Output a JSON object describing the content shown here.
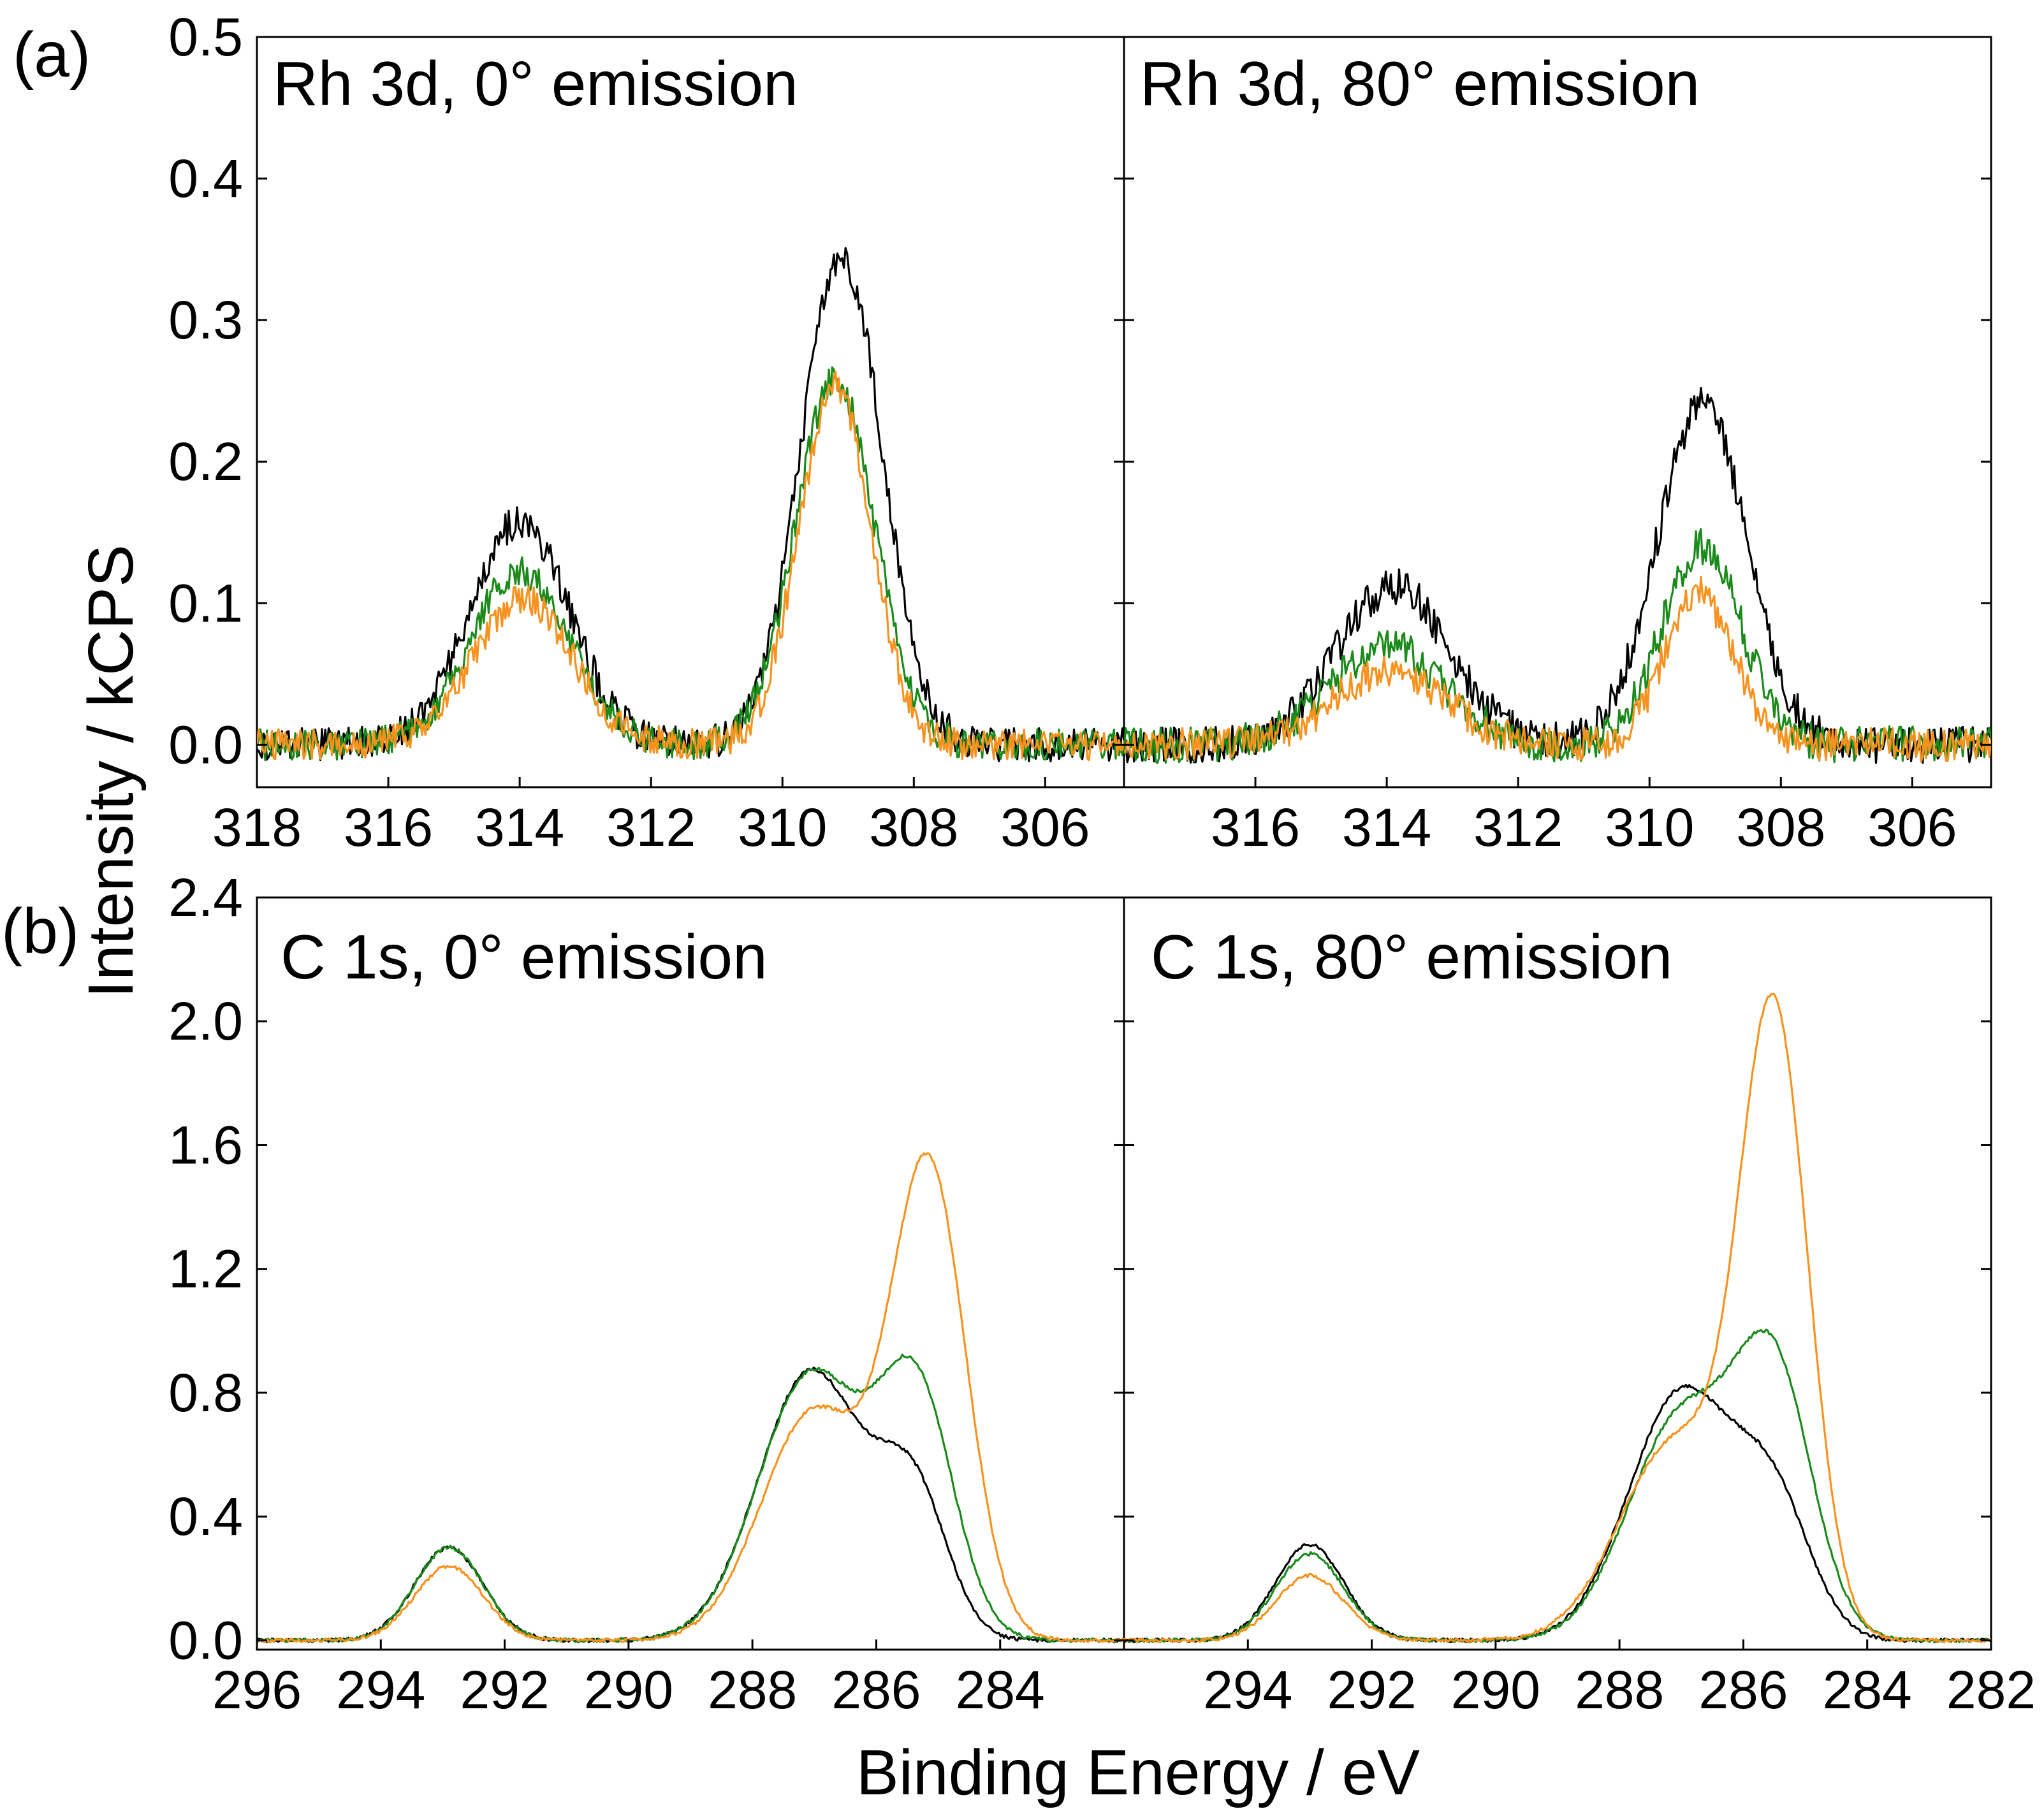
{
  "figure": {
    "label_a": "(a)",
    "label_b": "(b)",
    "y_axis_title": "Intensity / kCPS",
    "x_axis_title": "Binding Energy / eV"
  },
  "colors": {
    "black": "#000000",
    "green": "#1a8a1a",
    "orange": "#f7921e"
  },
  "chart_data": [
    {
      "id": "a-left",
      "type": "line",
      "title": "Rh 3d, 0° emission",
      "xlim": [
        318,
        304.8
      ],
      "ylim": [
        -0.03,
        0.5
      ],
      "yticks": [
        0.0,
        0.1,
        0.2,
        0.3,
        0.4,
        0.5
      ],
      "ytick_labels": [
        "0.0",
        "0.1",
        "0.2",
        "0.3",
        "0.4",
        "0.5"
      ],
      "xticks": [
        318,
        316,
        314,
        312,
        310,
        308,
        306
      ],
      "xtick_labels": [
        "318",
        "316",
        "314",
        "312",
        "310",
        "308",
        "306"
      ],
      "series": [
        {
          "name": "black",
          "color": "#000000",
          "peaks": [
            {
              "x": 314.0,
              "h": 0.158,
              "w": 0.75
            },
            {
              "x": 309.1,
              "h": 0.345,
              "w": 0.62
            }
          ],
          "noise": 0.012,
          "peak_x": [
            314.05,
            309.1
          ],
          "peak_y": [
            0.18,
            0.365
          ]
        },
        {
          "name": "green",
          "color": "#1a8a1a",
          "peaks": [
            {
              "x": 314.0,
              "h": 0.123,
              "w": 0.75
            },
            {
              "x": 309.2,
              "h": 0.258,
              "w": 0.6
            }
          ],
          "noise": 0.011,
          "peak_x": [
            314.05,
            309.25
          ],
          "peak_y": [
            0.14,
            0.29
          ]
        },
        {
          "name": "orange",
          "color": "#f7921e",
          "peaks": [
            {
              "x": 313.95,
              "h": 0.103,
              "w": 0.75
            },
            {
              "x": 309.2,
              "h": 0.253,
              "w": 0.55
            }
          ],
          "noise": 0.011,
          "peak_x": [
            313.95,
            309.15
          ],
          "peak_y": [
            0.12,
            0.275
          ]
        }
      ]
    },
    {
      "id": "a-right",
      "type": "line",
      "title": "Rh 3d, 80° emission",
      "xlim": [
        318,
        304.8
      ],
      "ylim": [
        -0.03,
        0.5
      ],
      "yticks": [
        0.0,
        0.1,
        0.2,
        0.3,
        0.4,
        0.5
      ],
      "ytick_labels": [
        "",
        "",
        "",
        "",
        "",
        ""
      ],
      "xticks": [
        316,
        314,
        312,
        310,
        308,
        306
      ],
      "xtick_labels": [
        "316",
        "314",
        "312",
        "310",
        "308",
        "306"
      ],
      "series": [
        {
          "name": "black",
          "color": "#000000",
          "peaks": [
            {
              "x": 313.9,
              "h": 0.112,
              "w": 0.85
            },
            {
              "x": 309.2,
              "h": 0.24,
              "w": 0.68
            }
          ],
          "noise": 0.013,
          "peak_x": [
            313.9,
            309.2
          ],
          "peak_y": [
            0.133,
            0.262
          ]
        },
        {
          "name": "green",
          "color": "#1a8a1a",
          "peaks": [
            {
              "x": 314.0,
              "h": 0.07,
              "w": 0.85
            },
            {
              "x": 309.2,
              "h": 0.14,
              "w": 0.6
            }
          ],
          "noise": 0.013,
          "peak_x": [
            314.0,
            309.2
          ],
          "peak_y": [
            0.088,
            0.165
          ]
        },
        {
          "name": "orange",
          "color": "#f7921e",
          "peaks": [
            {
              "x": 313.95,
              "h": 0.052,
              "w": 0.85
            },
            {
              "x": 309.25,
              "h": 0.107,
              "w": 0.52
            }
          ],
          "noise": 0.012,
          "peak_x": [
            313.95,
            309.25
          ],
          "peak_y": [
            0.068,
            0.125
          ]
        }
      ]
    },
    {
      "id": "b-left",
      "type": "line",
      "title": "C 1s, 0° emission",
      "xlim": [
        296,
        282
      ],
      "ylim": [
        -0.03,
        2.4
      ],
      "yticks": [
        0.0,
        0.4,
        0.8,
        1.2,
        1.6,
        2.0,
        2.4
      ],
      "ytick_labels": [
        "0.0",
        "0.4",
        "0.8",
        "1.2",
        "1.6",
        "2.0",
        "2.4"
      ],
      "xticks": [
        296,
        294,
        292,
        290,
        288,
        286,
        284
      ],
      "xtick_labels": [
        "296",
        "294",
        "292",
        "290",
        "288",
        "286",
        "284"
      ],
      "series": [
        {
          "name": "black",
          "color": "#000000",
          "peaks": [
            {
              "x": 292.9,
              "h": 0.3,
              "w": 0.55
            },
            {
              "x": 287.05,
              "h": 0.87,
              "w": 0.85
            },
            {
              "x": 285.4,
              "h": 0.45,
              "w": 0.55
            }
          ],
          "noise": 0.006,
          "peak_x": [
            292.9,
            287.0,
            285.4
          ],
          "peak_y": [
            0.31,
            0.92,
            0.65
          ]
        },
        {
          "name": "green",
          "color": "#1a8a1a",
          "peaks": [
            {
              "x": 292.9,
              "h": 0.3,
              "w": 0.55
            },
            {
              "x": 287.05,
              "h": 0.86,
              "w": 0.85
            },
            {
              "x": 285.35,
              "h": 0.78,
              "w": 0.6
            }
          ],
          "noise": 0.006,
          "peak_x": [
            292.9,
            287.0,
            285.35
          ],
          "peak_y": [
            0.31,
            0.92,
            0.99
          ]
        },
        {
          "name": "orange",
          "color": "#f7921e",
          "peaks": [
            {
              "x": 292.9,
              "h": 0.24,
              "w": 0.55
            },
            {
              "x": 287.0,
              "h": 0.74,
              "w": 0.85
            },
            {
              "x": 285.15,
              "h": 1.5,
              "w": 0.6
            }
          ],
          "noise": 0.006,
          "peak_x": [
            292.9,
            287.0,
            285.15
          ],
          "peak_y": [
            0.25,
            0.78,
            1.64
          ]
        }
      ]
    },
    {
      "id": "b-right",
      "type": "line",
      "title": "C 1s, 80° emission",
      "xlim": [
        296,
        282
      ],
      "ylim": [
        -0.03,
        2.4
      ],
      "yticks": [
        0.0,
        0.4,
        0.8,
        1.2,
        1.6,
        2.0,
        2.4
      ],
      "ytick_labels": [
        "",
        "",
        "",
        "",
        "",
        "",
        ""
      ],
      "xticks": [
        294,
        292,
        290,
        288,
        286,
        284,
        282
      ],
      "xtick_labels": [
        "294",
        "292",
        "290",
        "288",
        "286",
        "284",
        "282"
      ],
      "series": [
        {
          "name": "black",
          "color": "#000000",
          "peaks": [
            {
              "x": 293.0,
              "h": 0.31,
              "w": 0.55
            },
            {
              "x": 287.0,
              "h": 0.8,
              "w": 0.85
            },
            {
              "x": 285.5,
              "h": 0.4,
              "w": 0.6
            }
          ],
          "noise": 0.006,
          "peak_x": [
            293.0,
            287.0,
            285.5
          ],
          "peak_y": [
            0.33,
            0.87,
            0.52
          ]
        },
        {
          "name": "green",
          "color": "#1a8a1a",
          "peaks": [
            {
              "x": 293.0,
              "h": 0.28,
              "w": 0.55
            },
            {
              "x": 287.0,
              "h": 0.72,
              "w": 0.85
            },
            {
              "x": 285.5,
              "h": 0.82,
              "w": 0.62
            }
          ],
          "noise": 0.006,
          "peak_x": [
            293.0,
            287.0,
            285.5
          ],
          "peak_y": [
            0.29,
            0.87,
            0.97
          ]
        },
        {
          "name": "orange",
          "color": "#f7921e",
          "peaks": [
            {
              "x": 293.0,
              "h": 0.21,
              "w": 0.55
            },
            {
              "x": 287.1,
              "h": 0.64,
              "w": 0.9
            },
            {
              "x": 285.5,
              "h": 1.95,
              "w": 0.55
            }
          ],
          "noise": 0.006,
          "peak_x": [
            293.0,
            287.1,
            285.4
          ],
          "peak_y": [
            0.22,
            0.74,
            2.07
          ]
        }
      ]
    }
  ]
}
